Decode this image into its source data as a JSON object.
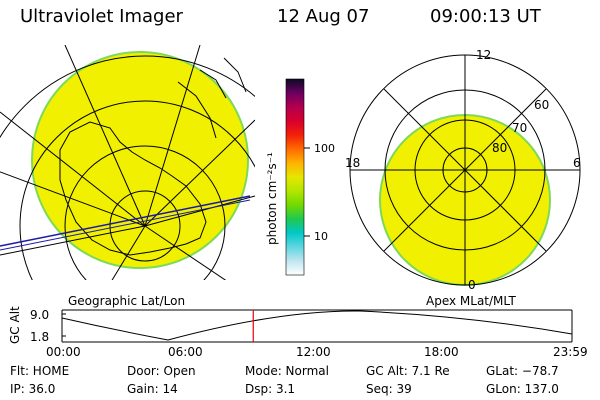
{
  "header": {
    "title": "Ultraviolet Imager",
    "date": "12 Aug 07",
    "time": "09:00:13 UT"
  },
  "colors": {
    "fill": "#f0f000",
    "edge_green": "#7ed957",
    "edge_cyan": "#36c6cc",
    "marker": "#e8000a"
  },
  "left_panel": {
    "label": "Geographic Lat/Lon"
  },
  "right_panel": {
    "label": "Apex MLat/MLT",
    "mlt_labels": {
      "top": "12",
      "left": "18",
      "right": "6",
      "bottom": "0"
    },
    "lat_labels": [
      "60",
      "70",
      "80"
    ]
  },
  "colorbar": {
    "unit_label": "photon cm⁻²s⁻¹",
    "ticks": [
      "100",
      "10"
    ],
    "colors": [
      "#0b0b24",
      "#6b0061",
      "#b2004f",
      "#d8002e",
      "#f2200a",
      "#ff6a00",
      "#ffb200",
      "#e6e600",
      "#b2e600",
      "#73d900",
      "#20c850",
      "#00c8c8",
      "#5fd6e0",
      "#bfe6f0",
      "#ffffff"
    ]
  },
  "timeline": {
    "ylabel": "GC Alt",
    "y_ticks": [
      "9.0",
      "1.8"
    ],
    "x_ticks": [
      "00:00",
      "06:00",
      "12:00",
      "18:00",
      "23:59"
    ],
    "current_time_hours": 9.0
  },
  "status": {
    "flt": "Flt: HOME",
    "ip": "IP: 36.0",
    "door": "Door: Open",
    "gain": "Gain: 14",
    "mode": "Mode: Normal",
    "dsp": "Dsp:    3.1",
    "gc_alt": "GC Alt: 7.1 Re",
    "seq": "Seq: 39",
    "glat": "GLat: −78.7",
    "glon": "GLon: 137.0"
  }
}
